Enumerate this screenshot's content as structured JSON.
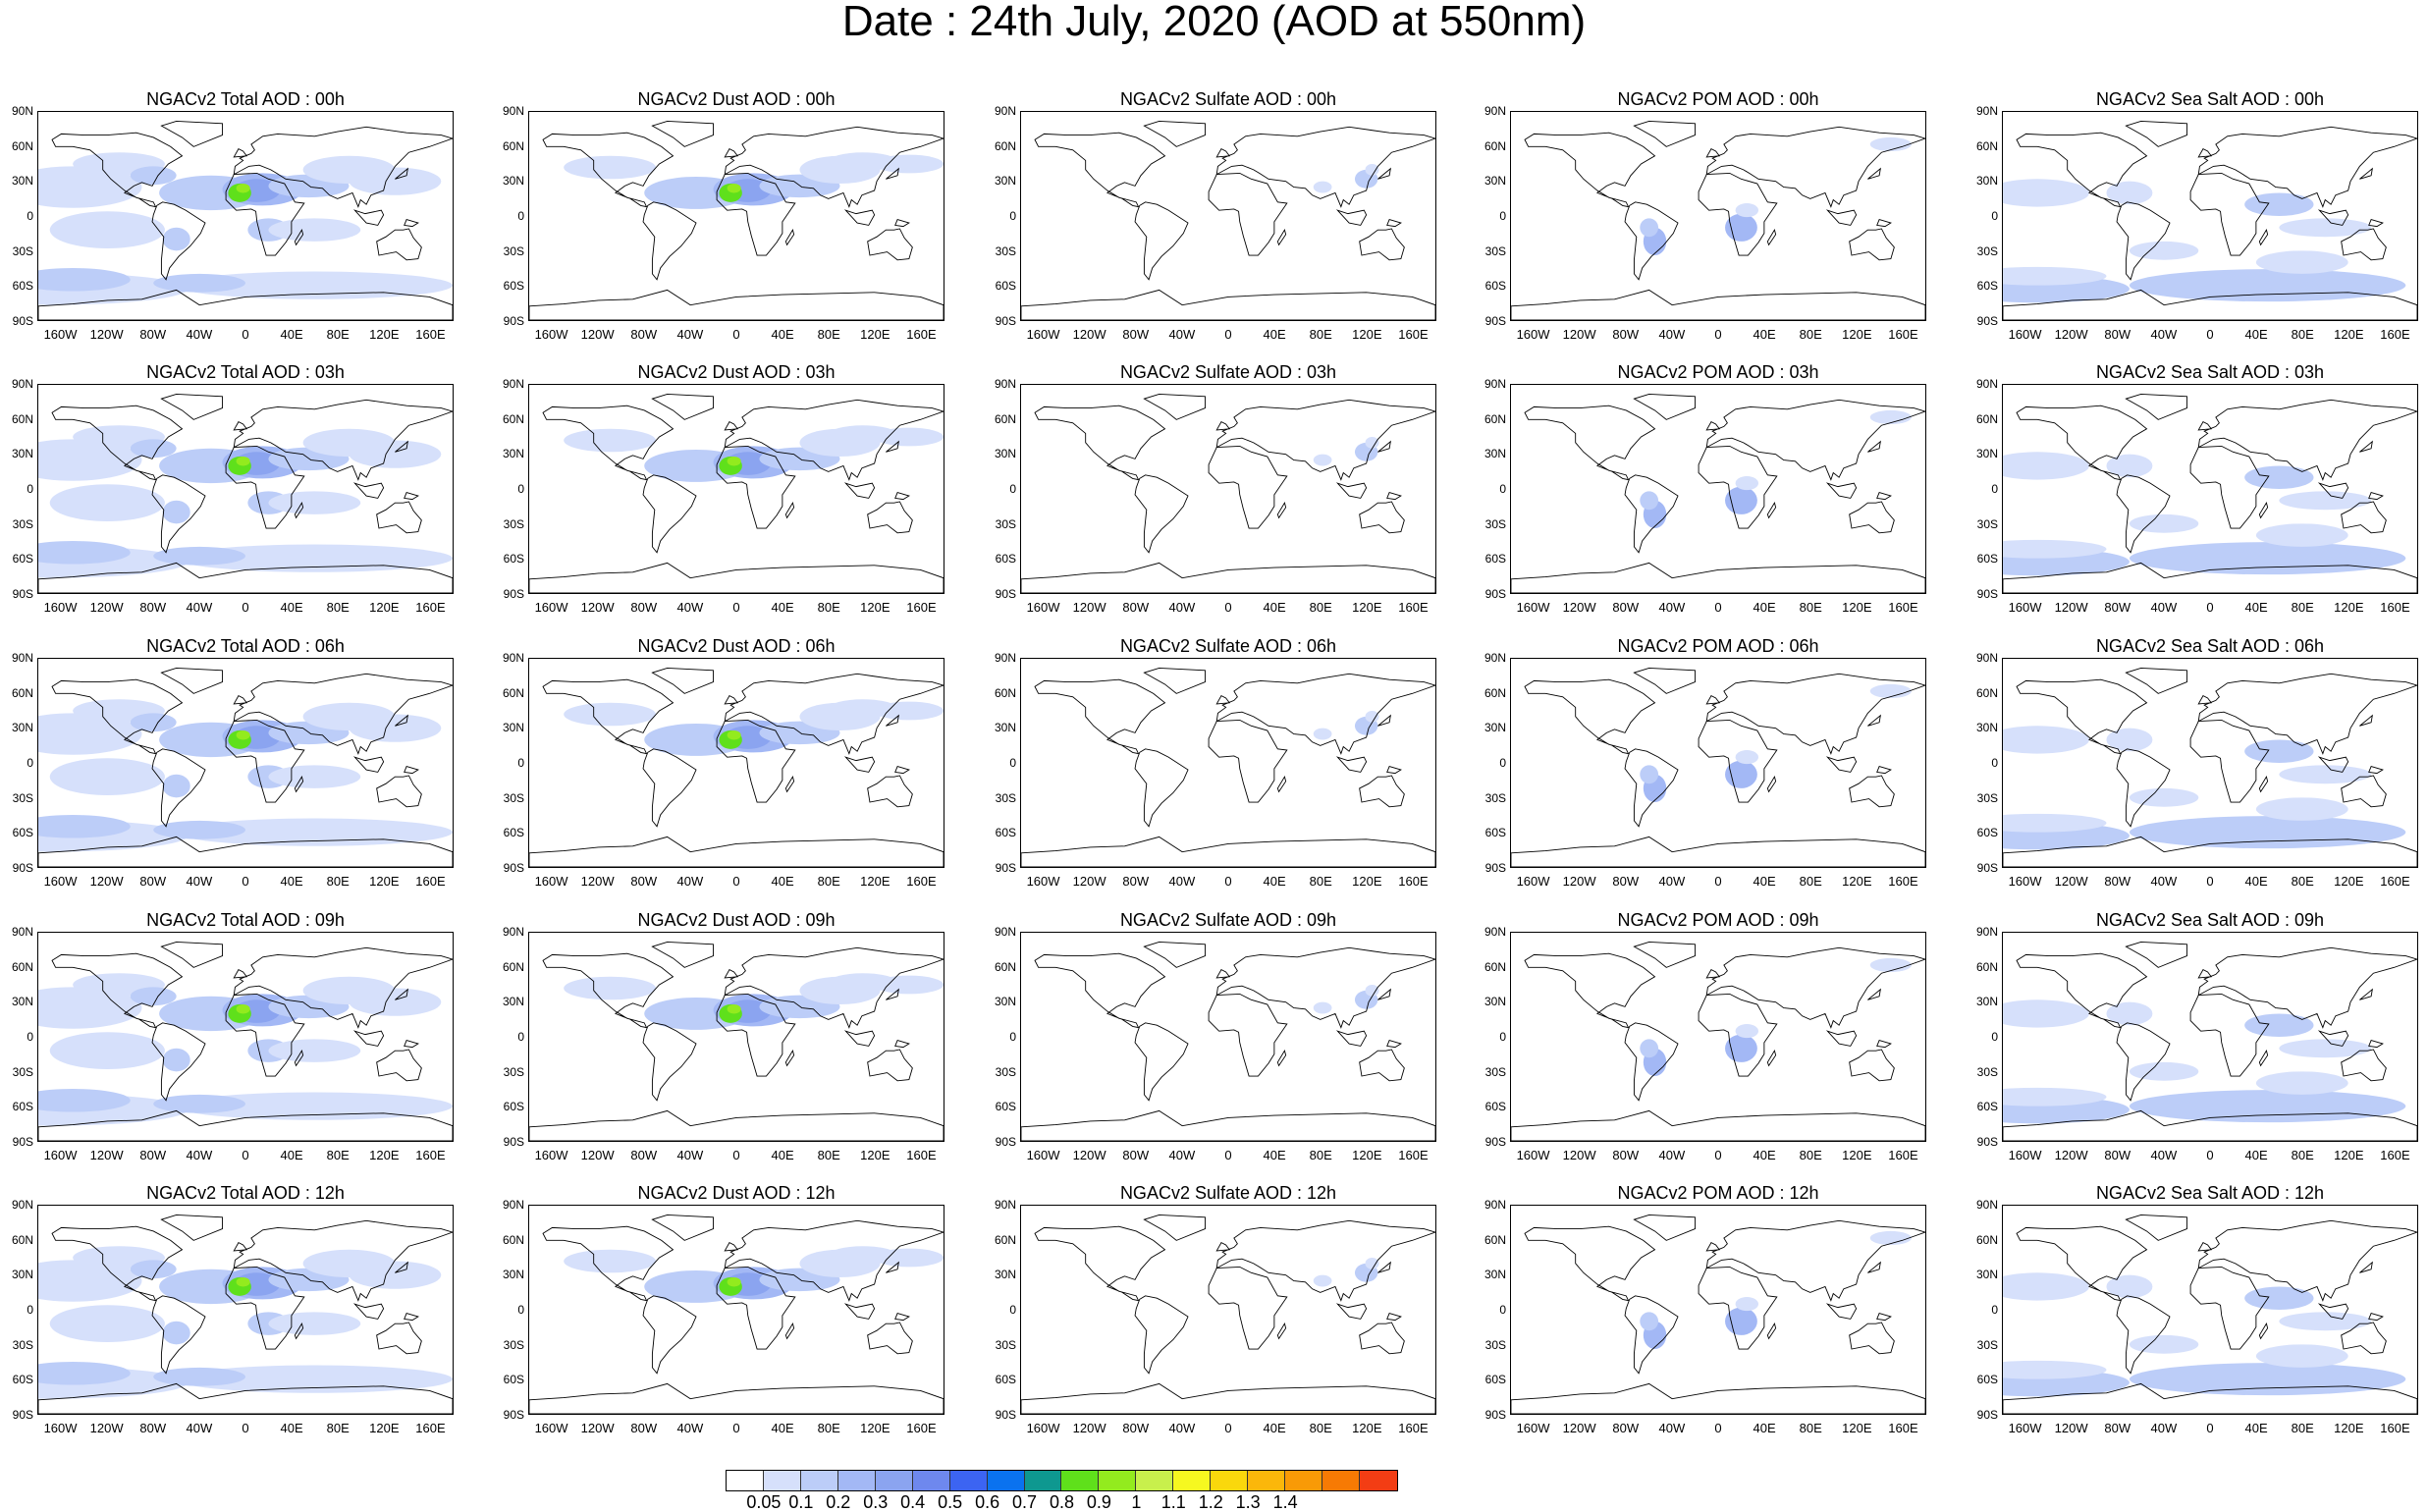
{
  "title": "Date : 24th July, 2020 (AOD at 550nm)",
  "panel_titles": [
    [
      "NGACv2 Total AOD : 00h",
      "NGACv2 Dust AOD : 00h",
      "NGACv2 Sulfate AOD : 00h",
      "NGACv2 POM AOD : 00h",
      "NGACv2 Sea Salt AOD : 00h"
    ],
    [
      "NGACv2 Total AOD : 03h",
      "NGACv2 Dust AOD : 03h",
      "NGACv2 Sulfate AOD : 03h",
      "NGACv2 POM AOD : 03h",
      "NGACv2 Sea Salt AOD : 03h"
    ],
    [
      "NGACv2 Total AOD : 06h",
      "NGACv2 Dust AOD : 06h",
      "NGACv2 Sulfate AOD : 06h",
      "NGACv2 POM AOD : 06h",
      "NGACv2 Sea Salt AOD : 06h"
    ],
    [
      "NGACv2 Total AOD : 09h",
      "NGACv2 Dust AOD : 09h",
      "NGACv2 Sulfate AOD : 09h",
      "NGACv2 POM AOD : 09h",
      "NGACv2 Sea Salt  AOD : 09h"
    ],
    [
      "NGACv2 Total AOD  : 12h",
      "NGACv2 Dust AOD : 12h",
      "NGACv2 Sulfate AOD : 12h",
      "NGACv2 POM  AOD : 12h",
      "NGACv2 Sea Salt  AOD : 12h"
    ]
  ],
  "lat_labels": [
    "90N",
    "60N",
    "30N",
    "0",
    "30S",
    "60S",
    "90S"
  ],
  "lon_labels": [
    "160W",
    "120W",
    "80W",
    "40W",
    "0",
    "40E",
    "80E",
    "120E",
    "160E"
  ],
  "colorbar": {
    "levels": [
      "0.05",
      "0.1",
      "0.2",
      "0.3",
      "0.4",
      "0.5",
      "0.6",
      "0.7",
      "0.8",
      "0.9",
      "1",
      "1.1",
      "1.2",
      "1.3",
      "1.4"
    ],
    "colors": [
      "#ffffff",
      "#d6e0fb",
      "#bccdf8",
      "#a3b8f5",
      "#8ba4f0",
      "#6e88ee",
      "#3c64f2",
      "#0a72ef",
      "#0e9890",
      "#5fe01b",
      "#93eb1e",
      "#c8f04c",
      "#f6f820",
      "#fad80c",
      "#fbb70a",
      "#f99a06",
      "#f77a04",
      "#f33d14"
    ]
  }
}
